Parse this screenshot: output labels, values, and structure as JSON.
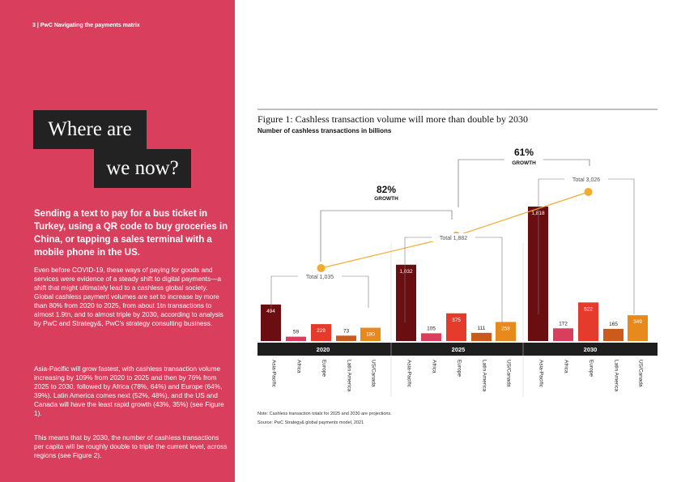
{
  "header": {
    "text": "3  |  PwC Navigating the payments matrix"
  },
  "headline": {
    "line1": "Where are",
    "line2": "we now?"
  },
  "intro": "Sending a text to pay for a bus ticket in Turkey, using a QR code to buy groceries in China, or tapping a sales terminal with a mobile phone in the US.",
  "paragraphs": [
    "Even before COVID-19, these ways of paying for goods and services were evidence of a steady shift to digital payments—a shift that might ultimately lead to a cashless global society. Global cashless payment volumes are set to increase by more than 80% from 2020 to 2025, from about 1tn transactions to almost 1.9tn, and to almost triple by 2030, according to analysis by PwC and Strategy&, PwC's strategy consulting business.",
    "Asia-Pacific will grow fastest, with cashless transaction volume increasing by 109% from 2020 to 2025 and then by 76% from 2025 to 2030, followed by Africa (78%, 64%) and Europe (64%, 39%). Latin America comes next (52%, 48%), and the US and Canada will have the least rapid growth (43%, 35%) (see Figure 1).",
    "This means that by 2030, the number of cashless transactions per capita will be roughly double to triple the current level, across regions (see Figure 2)."
  ],
  "chart_data": {
    "type": "bar",
    "title": "Figure 1: Cashless transaction volume will more than double by 2030",
    "subtitle": "Number of cashless transactions in billions",
    "groups": [
      "2020",
      "2025",
      "2030"
    ],
    "categories": [
      "Asia-Pacific",
      "Africa",
      "Europe",
      "Latin America",
      "US/Canada"
    ],
    "values": [
      [
        494,
        59,
        229,
        73,
        180
      ],
      [
        1032,
        105,
        375,
        111,
        258
      ],
      [
        1818,
        172,
        522,
        165,
        349
      ]
    ],
    "totals": [
      {
        "label": "Total 1,035",
        "value": 1035
      },
      {
        "label": "Total 1,882",
        "value": 1882
      },
      {
        "label": "Total 3,026",
        "value": 3026
      }
    ],
    "growth": [
      {
        "pct": "82%",
        "word": "GROWTH"
      },
      {
        "pct": "61%",
        "word": "GROWTH"
      }
    ],
    "colors": [
      "#6b0e12",
      "#d93f5c",
      "#e53b2c",
      "#cc5a1c",
      "#e8891c"
    ],
    "line_color": "#f0ac30",
    "note": "Note: Cashless transaction totals for 2025 and 2030 are projections.",
    "source": "Source: PwC Strategy& global payments model, 2021"
  }
}
